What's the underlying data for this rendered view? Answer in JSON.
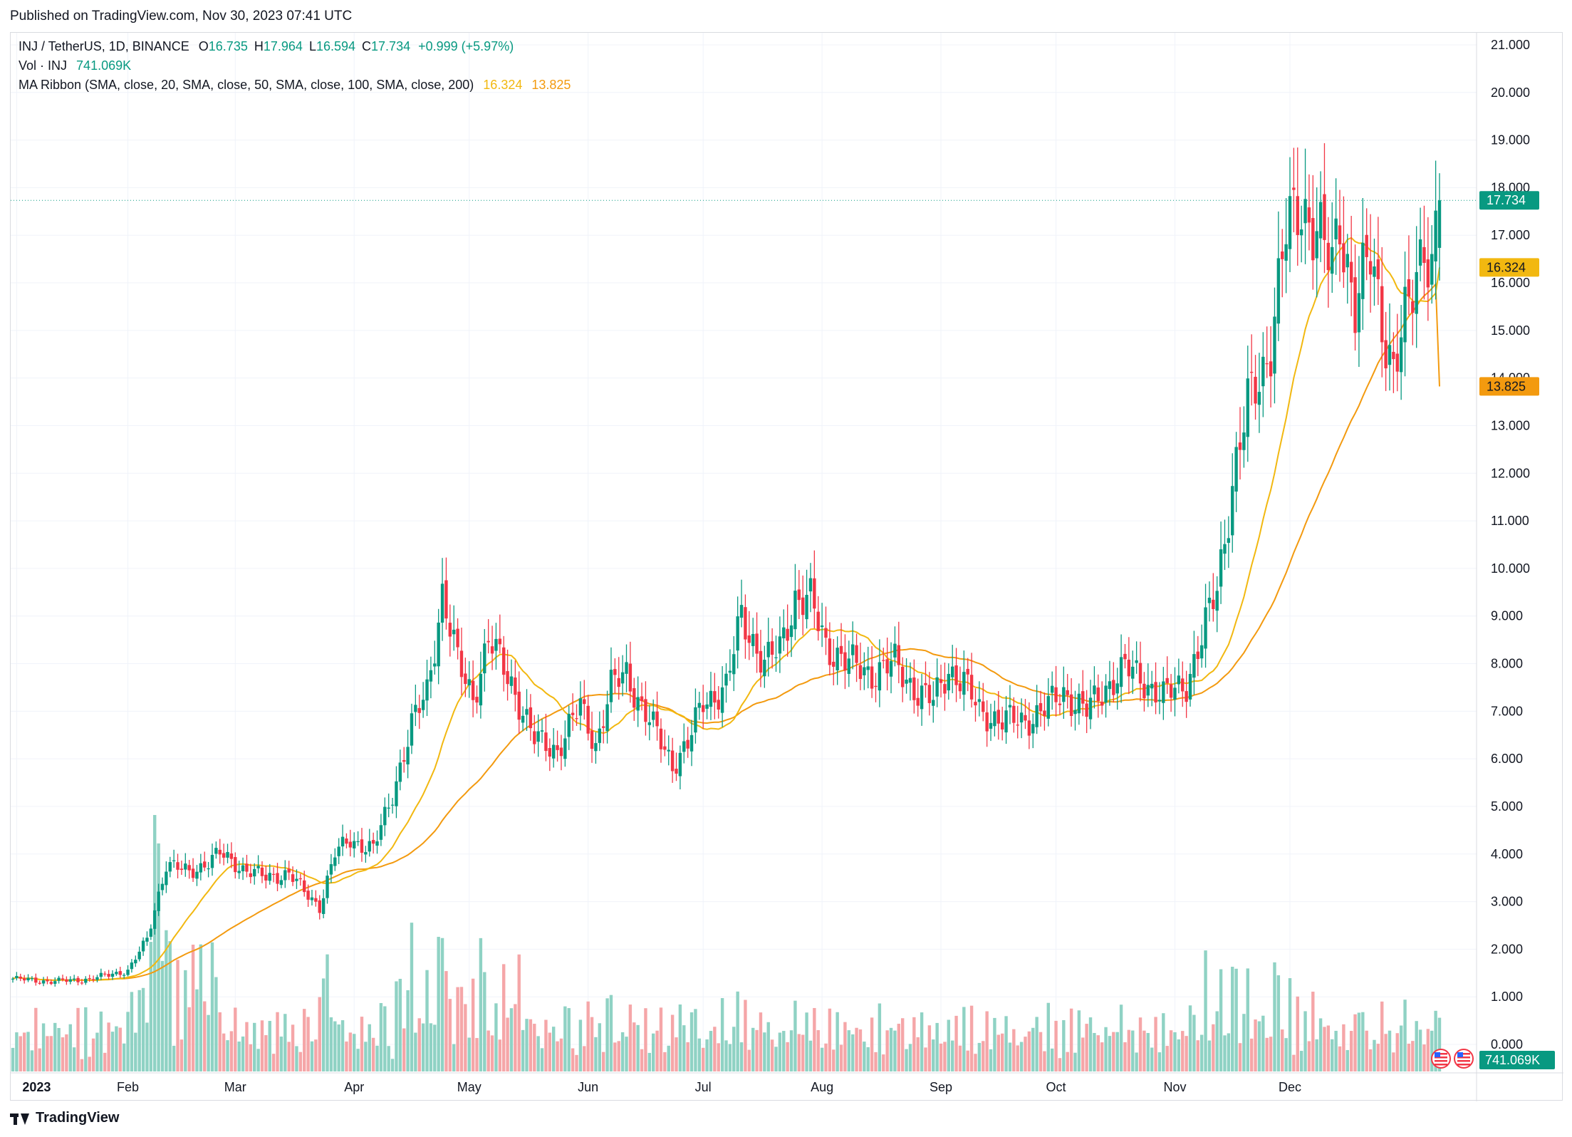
{
  "published": "Published on TradingView.com, Nov 30, 2023 07:41 UTC",
  "legend": {
    "symbol": "INJ / TetherUS, 1D, BINANCE",
    "o_label": "O",
    "o": "16.735",
    "h_label": "H",
    "h": "17.964",
    "l_label": "L",
    "l": "16.594",
    "c_label": "C",
    "c": "17.734",
    "change": "+0.999 (+5.97%)",
    "vol_label": "Vol · INJ",
    "vol_value": "741.069K",
    "ma_label": "MA Ribbon (SMA, close, 20, SMA, close, 50, SMA, close, 100, SMA, close, 200)",
    "ma20_value": "16.324",
    "ma50_value": "13.825"
  },
  "footer_brand": "TradingView",
  "colors": {
    "up": "#089981",
    "down": "#f23645",
    "ma20": "#f2b810",
    "ma50": "#f39a0f",
    "vol_up": "#8fd2c4",
    "vol_down": "#f5a6a8",
    "grid": "#f0f3fa"
  },
  "chart_data": {
    "type": "candlestick",
    "title": "INJ / TetherUS, 1D, BINANCE",
    "y_ticks": [
      "21.000",
      "20.000",
      "19.000",
      "18.000",
      "17.000",
      "16.000",
      "15.000",
      "14.000",
      "13.000",
      "12.000",
      "11.000",
      "10.000",
      "9.000",
      "8.000",
      "7.000",
      "6.000",
      "5.000",
      "4.000",
      "3.000",
      "2.000",
      "1.000",
      "0.000"
    ],
    "ylim": [
      0,
      21.6
    ],
    "x_labels": [
      "2023",
      "Feb",
      "Mar",
      "Apr",
      "May",
      "Jun",
      "Jul",
      "Aug",
      "Sep",
      "Oct",
      "Nov",
      "Dec"
    ],
    "current_price": "17.734",
    "price_badges": [
      {
        "value": "17.734",
        "color": "#089981"
      },
      {
        "value": "16.324",
        "color": "#f2b810"
      },
      {
        "value": "13.825",
        "color": "#f39a0f"
      }
    ],
    "volume_badge": "741.069K",
    "anchors": [
      [
        0,
        1.38
      ],
      [
        10,
        1.32
      ],
      [
        20,
        1.37
      ],
      [
        30,
        1.55
      ],
      [
        35,
        2.2
      ],
      [
        40,
        3.8
      ],
      [
        46,
        3.6
      ],
      [
        54,
        4.0
      ],
      [
        60,
        3.7
      ],
      [
        66,
        3.5
      ],
      [
        72,
        3.6
      ],
      [
        76,
        3.2
      ],
      [
        80,
        2.9
      ],
      [
        84,
        4.0
      ],
      [
        88,
        4.3
      ],
      [
        94,
        4.1
      ],
      [
        98,
        5.0
      ],
      [
        104,
        6.7
      ],
      [
        108,
        7.4
      ],
      [
        112,
        9.5
      ],
      [
        116,
        8.0
      ],
      [
        120,
        7.3
      ],
      [
        124,
        8.5
      ],
      [
        130,
        7.6
      ],
      [
        136,
        6.4
      ],
      [
        142,
        6.2
      ],
      [
        148,
        7.1
      ],
      [
        152,
        6.3
      ],
      [
        156,
        7.5
      ],
      [
        160,
        7.8
      ],
      [
        164,
        7.1
      ],
      [
        168,
        6.5
      ],
      [
        172,
        5.9
      ],
      [
        176,
        6.3
      ],
      [
        180,
        7.2
      ],
      [
        186,
        7.5
      ],
      [
        190,
        9.0
      ],
      [
        196,
        8.0
      ],
      [
        200,
        8.3
      ],
      [
        204,
        9.4
      ],
      [
        208,
        9.3
      ],
      [
        212,
        8.4
      ],
      [
        218,
        8.0
      ],
      [
        224,
        7.8
      ],
      [
        230,
        8.0
      ],
      [
        236,
        7.4
      ],
      [
        240,
        7.2
      ],
      [
        244,
        7.9
      ],
      [
        248,
        7.6
      ],
      [
        252,
        7.0
      ],
      [
        258,
        6.8
      ],
      [
        264,
        6.8
      ],
      [
        270,
        7.1
      ],
      [
        274,
        7.4
      ],
      [
        280,
        7.0
      ],
      [
        286,
        7.6
      ],
      [
        290,
        7.9
      ],
      [
        294,
        7.7
      ],
      [
        300,
        7.3
      ],
      [
        306,
        7.6
      ],
      [
        310,
        8.5
      ],
      [
        314,
        9.6
      ],
      [
        318,
        11.8
      ],
      [
        322,
        13.4
      ],
      [
        326,
        14.2
      ],
      [
        328,
        14.8
      ],
      [
        332,
        17.0
      ],
      [
        336,
        17.7
      ],
      [
        340,
        17.1
      ],
      [
        344,
        16.3
      ],
      [
        346,
        17.4
      ],
      [
        350,
        15.5
      ],
      [
        354,
        16.5
      ],
      [
        358,
        14.9
      ],
      [
        360,
        14.2
      ],
      [
        364,
        15.4
      ],
      [
        368,
        17.0
      ],
      [
        370,
        16.4
      ],
      [
        372,
        17.734
      ]
    ],
    "ma20_note": "SMA 20 line, last value 16.324",
    "ma50_note": "SMA 50 line, last value 13.825"
  }
}
